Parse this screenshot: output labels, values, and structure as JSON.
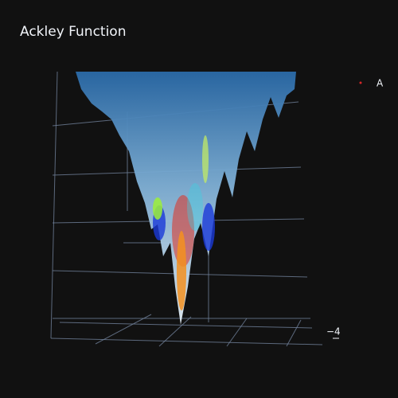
{
  "chart_data": {
    "type": "surface",
    "title": "Ackley Function",
    "series": [
      {
        "name": "A",
        "color": "#d62728"
      }
    ],
    "xticks": [
      {
        "value": -4,
        "label": "−4"
      }
    ]
  }
}
